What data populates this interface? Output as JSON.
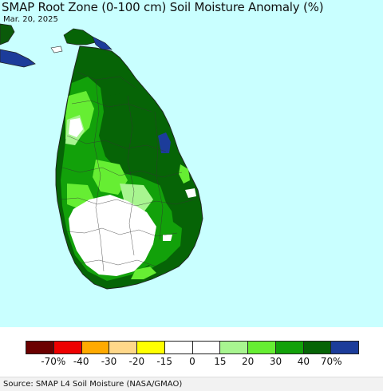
{
  "title": "SMAP Root Zone (0-100 cm) Soil Moisture Anomaly (%)",
  "date": "Mar. 20, 2025",
  "legend": {
    "colors": [
      "#6b0000",
      "#ee0000",
      "#ffaa00",
      "#ffd88a",
      "#ffff00",
      "#ffffff",
      "#ffffff",
      "#a8f590",
      "#66ee33",
      "#12a10a",
      "#066406",
      "#1c3c9a"
    ],
    "labels": [
      "-70%",
      "-40",
      "-30",
      "-20",
      "-15",
      "0",
      "15",
      "20",
      "30",
      "40",
      "70%"
    ]
  },
  "source": "Source: SMAP L4 Soil Moisture (NASA/GMAO)",
  "map": {
    "ocean_color": "#c9ffff",
    "no_data_color": "#ffffff"
  }
}
